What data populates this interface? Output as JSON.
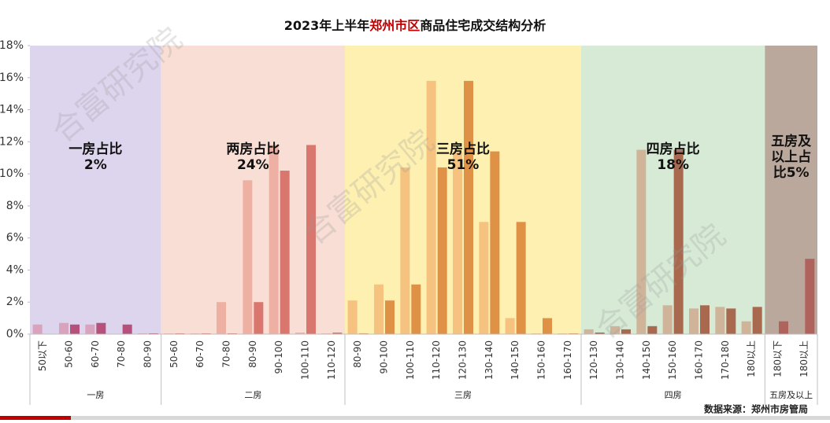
{
  "chart_data": {
    "type": "bar",
    "title_parts": [
      "2023年上半年",
      "郑州市区",
      "商品住宅成交结构分析"
    ],
    "title_colors": [
      "#111111",
      "#c00000",
      "#111111"
    ],
    "source": "数据来源：郑州市房管局",
    "watermark": "合富研究院",
    "ylim": [
      0,
      18
    ],
    "yticks": [
      {
        "value": 0,
        "label": "0%"
      },
      {
        "value": 2,
        "label": "2%"
      },
      {
        "value": 4,
        "label": "4%"
      },
      {
        "value": 6,
        "label": "6%"
      },
      {
        "value": 8,
        "label": "8%"
      },
      {
        "value": 10,
        "label": "10%"
      },
      {
        "value": 12,
        "label": "12%"
      },
      {
        "value": 14,
        "label": "14%"
      },
      {
        "value": 16,
        "label": "16%"
      },
      {
        "value": 18,
        "label": "18%"
      }
    ],
    "groups": [
      {
        "label": "一房",
        "annotation": [
          "一房占比",
          "2%"
        ],
        "band_color": "#ddd4ee",
        "colors": [
          "#d9a3bd",
          "#b5517a"
        ],
        "categories": [
          "50以下",
          "50-60",
          "60-70",
          "70-80",
          "80-90"
        ],
        "series": [
          {
            "values": [
              0.6,
              0.7,
              0.6,
              0,
              0.05
            ]
          },
          {
            "values": [
              0,
              0.6,
              0.7,
              0.6,
              0.05
            ]
          }
        ]
      },
      {
        "label": "二房",
        "annotation": [
          "两房占比",
          "24%"
        ],
        "band_color": "#f8ded5",
        "colors": [
          "#efb0a4",
          "#d9776e"
        ],
        "categories": [
          "50-60",
          "60-70",
          "70-80",
          "80-90",
          "90-100",
          "100-110",
          "110-120"
        ],
        "series": [
          {
            "values": [
              0.05,
              0.05,
              2.0,
              9.6,
              11.8,
              0.1,
              0.05
            ]
          },
          {
            "values": [
              0.05,
              0.05,
              0.05,
              2.0,
              10.2,
              11.8,
              0.1
            ]
          }
        ]
      },
      {
        "label": "三房",
        "annotation": [
          "三房占比",
          "51%"
        ],
        "band_color": "#fdf0b0",
        "colors": [
          "#f5c27f",
          "#df9245"
        ],
        "categories": [
          "80-90",
          "90-100",
          "100-110",
          "110-120",
          "120-130",
          "130-140",
          "140-150",
          "150-160",
          "160-170"
        ],
        "series": [
          {
            "values": [
              2.1,
              3.1,
              10.4,
              15.8,
              11.4,
              7.0,
              1.0,
              0.05,
              0.05
            ]
          },
          {
            "values": [
              0.05,
              2.1,
              3.1,
              10.4,
              15.8,
              11.4,
              7.0,
              1.0,
              0.05
            ]
          }
        ]
      },
      {
        "label": "四房",
        "annotation": [
          "四房占比",
          "18%"
        ],
        "band_color": "#d6ead5",
        "colors": [
          "#cfb49a",
          "#a8694f"
        ],
        "categories": [
          "120-130",
          "130-140",
          "140-150",
          "150-160",
          "160-170",
          "170-180",
          "180以上"
        ],
        "series": [
          {
            "values": [
              0.3,
              0.5,
              11.5,
              1.8,
              1.6,
              1.7,
              0.8
            ]
          },
          {
            "values": [
              0.1,
              0.3,
              0.5,
              11.5,
              1.8,
              1.6,
              1.7
            ]
          }
        ]
      },
      {
        "label": "五房及以上",
        "annotation": [
          "五房及",
          "以上占",
          "比5%"
        ],
        "band_color": "#bba89c",
        "colors": [
          "#c8a99a",
          "#b0625c"
        ],
        "categories": [
          "180以下",
          "180以上"
        ],
        "series": [
          {
            "values": [
              0.05,
              0
            ]
          },
          {
            "values": [
              0.8,
              4.7
            ]
          }
        ]
      }
    ]
  }
}
